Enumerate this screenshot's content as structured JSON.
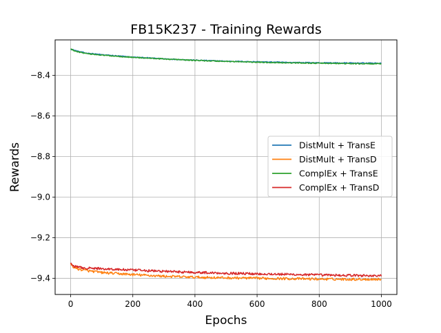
{
  "chart_data": {
    "type": "line",
    "title": "FB15K237 - Training Rewards",
    "xlabel": "Epochs",
    "ylabel": "Rewards",
    "xlim": [
      -50,
      1050
    ],
    "ylim": [
      -9.48,
      -8.225
    ],
    "xticks": [
      0,
      200,
      400,
      600,
      800,
      1000
    ],
    "xtick_labels": [
      "0",
      "200",
      "400",
      "600",
      "800",
      "1000"
    ],
    "yticks": [
      -9.4,
      -9.2,
      -9.0,
      -8.8,
      -8.6,
      -8.4
    ],
    "ytick_labels": [
      "−9.4",
      "−9.2",
      "−9.0",
      "−8.8",
      "−8.6",
      "−8.4"
    ],
    "grid": true,
    "legend_position": "center-right",
    "x": [
      0,
      10,
      25,
      50,
      100,
      200,
      300,
      400,
      500,
      600,
      700,
      800,
      900,
      1000
    ],
    "series": [
      {
        "name": "DistMult + TransE",
        "color": "#1f77b4",
        "noise": 0.0025,
        "values": [
          -8.27,
          -8.275,
          -8.282,
          -8.29,
          -8.298,
          -8.31,
          -8.318,
          -8.325,
          -8.33,
          -8.333,
          -8.336,
          -8.338,
          -8.339,
          -8.34
        ]
      },
      {
        "name": "DistMult + TransD",
        "color": "#ff7f0e",
        "noise": 0.006,
        "values": [
          -9.33,
          -9.345,
          -9.355,
          -9.362,
          -9.372,
          -9.382,
          -9.39,
          -9.395,
          -9.398,
          -9.4,
          -9.402,
          -9.404,
          -9.405,
          -9.405
        ]
      },
      {
        "name": "ComplEx + TransE",
        "color": "#2ca02c",
        "noise": 0.0025,
        "values": [
          -8.27,
          -8.277,
          -8.284,
          -8.292,
          -8.3,
          -8.311,
          -8.319,
          -8.326,
          -8.331,
          -8.335,
          -8.338,
          -8.34,
          -8.342,
          -8.343
        ]
      },
      {
        "name": "ComplEx + TransD",
        "color": "#d62728",
        "noise": 0.006,
        "values": [
          -9.325,
          -9.34,
          -9.346,
          -9.35,
          -9.353,
          -9.36,
          -9.366,
          -9.371,
          -9.375,
          -9.378,
          -9.381,
          -9.384,
          -9.386,
          -9.388
        ]
      }
    ]
  }
}
